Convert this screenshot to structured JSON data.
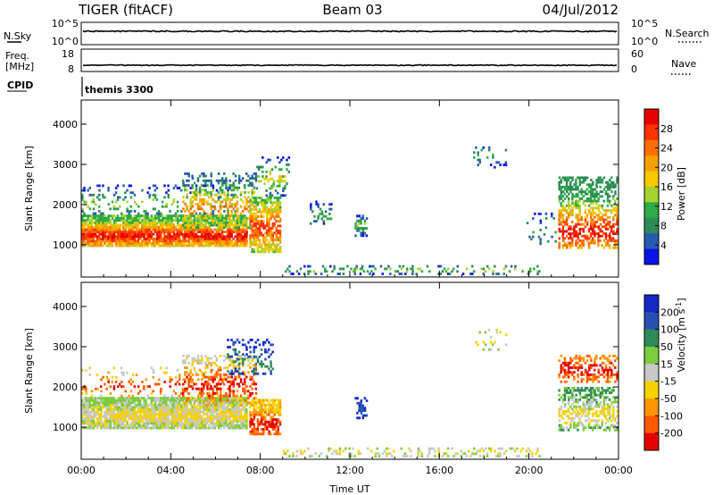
{
  "header": {
    "title_left": "TIGER (fitACF)",
    "title_center": "Beam 03",
    "title_right": "04/Jul/2012"
  },
  "top_panels": {
    "nsky_label": "N.Sky",
    "nsky_ticks": [
      "10^5",
      "10^0"
    ],
    "nsearch_label": "N.Search",
    "nsearch_ticks": [
      "10^5",
      "10^0"
    ],
    "freq_label": "Freq.",
    "freq_unit": "[MHz]",
    "freq_ticks": [
      "18",
      "8"
    ],
    "nave_label": "Nave",
    "nave_ticks": [
      "60",
      "0"
    ],
    "cpid_label": "CPID",
    "cpid_text": "themis 3300"
  },
  "chart_data": [
    {
      "type": "heatmap",
      "panel": "power",
      "ylabel": "Slant Range [km]",
      "xlabel": "",
      "x_ticks": [
        "00:00",
        "04:00",
        "08:00",
        "12:00",
        "16:00",
        "20:00",
        "00:00"
      ],
      "xlim_hours": [
        0,
        24
      ],
      "ylim": [
        200,
        4600
      ],
      "y_ticks": [
        1000,
        2000,
        3000,
        4000
      ],
      "colorbar": {
        "label": "Power [dB]",
        "ticks": [
          "4",
          "8",
          "12",
          "16",
          "20",
          "24",
          "28"
        ],
        "colors": [
          "#0a14e6",
          "#285ab4",
          "#2e8b57",
          "#2eaa46",
          "#a6d22e",
          "#f5c800",
          "#f5a000",
          "#ff6e00",
          "#ff3200",
          "#e60000"
        ]
      },
      "regions": [
        {
          "t0": 0.0,
          "t1": 7.4,
          "r0": 950,
          "r1": 1750,
          "density": 0.9,
          "level_lo": 3,
          "level_hi": 9,
          "core": 1200
        },
        {
          "t0": 0.0,
          "t1": 7.0,
          "r0": 1750,
          "r1": 2500,
          "density": 0.18,
          "level_lo": 0,
          "level_hi": 4,
          "core": 2000
        },
        {
          "t0": 4.5,
          "t1": 7.8,
          "r0": 1400,
          "r1": 2800,
          "density": 0.35,
          "level_lo": 1,
          "level_hi": 7,
          "core": 1900
        },
        {
          "t0": 7.5,
          "t1": 8.9,
          "r0": 800,
          "r1": 2200,
          "density": 0.7,
          "level_lo": 3,
          "level_hi": 8,
          "core": 1400
        },
        {
          "t0": 7.8,
          "t1": 9.3,
          "r0": 2200,
          "r1": 3200,
          "density": 0.22,
          "level_lo": 0,
          "level_hi": 5,
          "core": 2600
        },
        {
          "t0": 9.0,
          "t1": 20.5,
          "r0": 250,
          "r1": 500,
          "density": 0.28,
          "level_lo": 0,
          "level_hi": 4,
          "core": 350
        },
        {
          "t0": 12.2,
          "t1": 12.8,
          "r0": 1200,
          "r1": 1750,
          "density": 0.5,
          "level_lo": 0,
          "level_hi": 4,
          "core": 1450
        },
        {
          "t0": 10.2,
          "t1": 11.2,
          "r0": 1500,
          "r1": 2100,
          "density": 0.25,
          "level_lo": 0,
          "level_hi": 3,
          "core": 1700
        },
        {
          "t0": 21.3,
          "t1": 24.0,
          "r0": 900,
          "r1": 2700,
          "density": 0.55,
          "level_lo": 2,
          "level_hi": 9,
          "core": 1300
        },
        {
          "t0": 17.5,
          "t1": 19.0,
          "r0": 2900,
          "r1": 3450,
          "density": 0.12,
          "level_lo": 0,
          "level_hi": 3,
          "core": 3200
        },
        {
          "t0": 19.8,
          "t1": 21.2,
          "r0": 1000,
          "r1": 1800,
          "density": 0.15,
          "level_lo": 0,
          "level_hi": 3,
          "core": 1300
        }
      ]
    },
    {
      "type": "heatmap",
      "panel": "velocity",
      "ylabel": "Slant Range [km]",
      "xlabel": "Time UT",
      "x_ticks": [
        "00:00",
        "04:00",
        "08:00",
        "12:00",
        "16:00",
        "20:00",
        "00:00"
      ],
      "xlim_hours": [
        0,
        24
      ],
      "ylim": [
        200,
        4600
      ],
      "y_ticks": [
        1000,
        2000,
        3000,
        4000
      ],
      "colorbar": {
        "label": "Velocity [m s^-1]",
        "ticks": [
          "200",
          "100",
          "50",
          "15",
          "-15",
          "-50",
          "-100",
          "-200"
        ],
        "colors": [
          "#1428c8",
          "#2850b4",
          "#2e8b57",
          "#7ccd3c",
          "#c8c8c8",
          "#f5d200",
          "#ff9600",
          "#ff5a00",
          "#e60000"
        ]
      },
      "regions": [
        {
          "t0": 0.0,
          "t1": 7.4,
          "r0": 950,
          "r1": 1750,
          "density": 0.9,
          "level_lo": 3,
          "level_hi": 5,
          "core": 1250
        },
        {
          "t0": 0.0,
          "t1": 7.0,
          "r0": 1750,
          "r1": 2500,
          "density": 0.15,
          "level_lo": 4,
          "level_hi": 8,
          "core": 2000
        },
        {
          "t0": 4.5,
          "t1": 7.8,
          "r0": 1400,
          "r1": 2800,
          "density": 0.35,
          "level_lo": 4,
          "level_hi": 8,
          "core": 2000
        },
        {
          "t0": 7.5,
          "t1": 8.9,
          "r0": 800,
          "r1": 1700,
          "density": 0.75,
          "level_lo": 5,
          "level_hi": 8,
          "core": 1000
        },
        {
          "t0": 6.5,
          "t1": 8.6,
          "r0": 2300,
          "r1": 3200,
          "density": 0.3,
          "level_lo": 0,
          "level_hi": 2,
          "core": 2600
        },
        {
          "t0": 9.0,
          "t1": 20.5,
          "r0": 250,
          "r1": 500,
          "density": 0.28,
          "level_lo": 3,
          "level_hi": 5,
          "core": 350
        },
        {
          "t0": 12.2,
          "t1": 12.8,
          "r0": 1200,
          "r1": 1750,
          "density": 0.5,
          "level_lo": 0,
          "level_hi": 1,
          "core": 1450
        },
        {
          "t0": 21.3,
          "t1": 24.0,
          "r0": 900,
          "r1": 2000,
          "density": 0.5,
          "level_lo": 2,
          "level_hi": 5,
          "core": 1300
        },
        {
          "t0": 21.3,
          "t1": 24.0,
          "r0": 2100,
          "r1": 2800,
          "density": 0.45,
          "level_lo": 6,
          "level_hi": 8,
          "core": 2400
        },
        {
          "t0": 17.5,
          "t1": 19.0,
          "r0": 2900,
          "r1": 3450,
          "density": 0.12,
          "level_lo": 3,
          "level_hi": 5,
          "core": 3200
        }
      ]
    }
  ],
  "time_series": {
    "nsky_level": 0.6,
    "freq_level": 0.28,
    "cpid_change_hour": 0.05
  }
}
